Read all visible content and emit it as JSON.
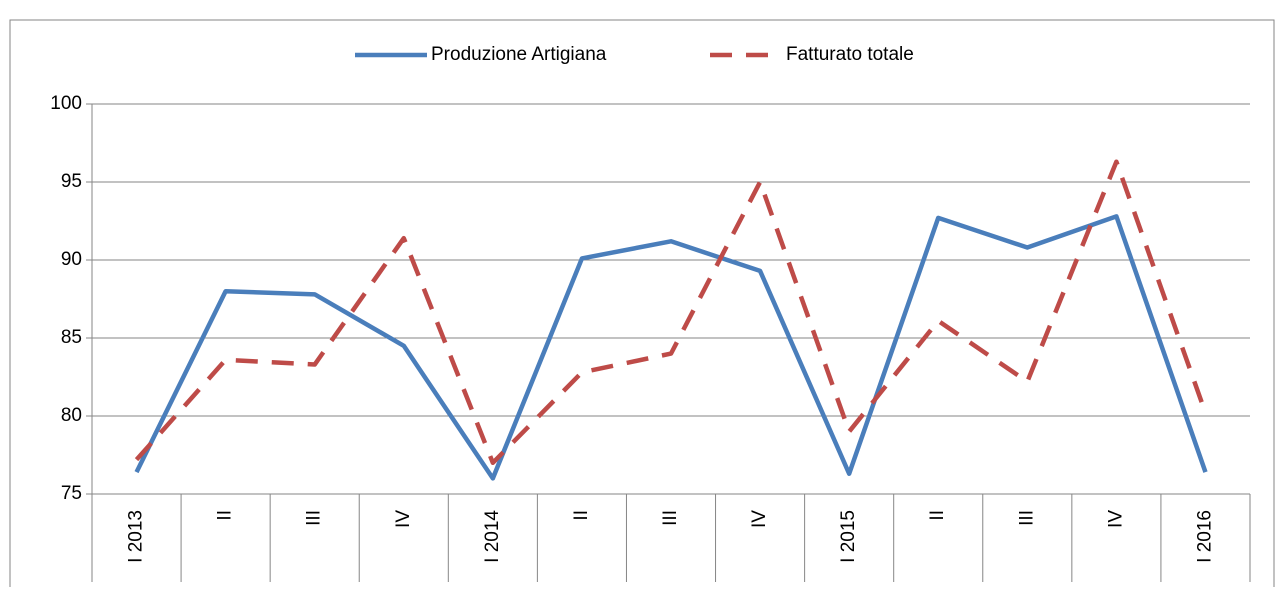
{
  "chart_data": {
    "type": "line",
    "categories": [
      "I 2013",
      "II",
      "III",
      "IV",
      "I 2014",
      "II",
      "III",
      "IV",
      "I 2015",
      "II",
      "III",
      "IV",
      "I 2016"
    ],
    "series": [
      {
        "name": "Produzione Artigiana",
        "color": "#4a7ebb",
        "dash": false,
        "values": [
          76.4,
          88.0,
          87.8,
          84.5,
          76.0,
          90.1,
          91.2,
          89.3,
          76.3,
          92.7,
          90.8,
          92.8,
          76.4
        ]
      },
      {
        "name": "Fatturato totale",
        "color": "#be4b48",
        "dash": true,
        "values": [
          77.2,
          83.6,
          83.3,
          91.4,
          77.0,
          82.8,
          84.0,
          95.0,
          79.0,
          86.1,
          82.2,
          96.3,
          80.2
        ]
      }
    ],
    "ylim": [
      75,
      100
    ],
    "yticks": [
      75,
      80,
      85,
      90,
      95,
      100
    ],
    "grid": true,
    "legend": "top"
  }
}
